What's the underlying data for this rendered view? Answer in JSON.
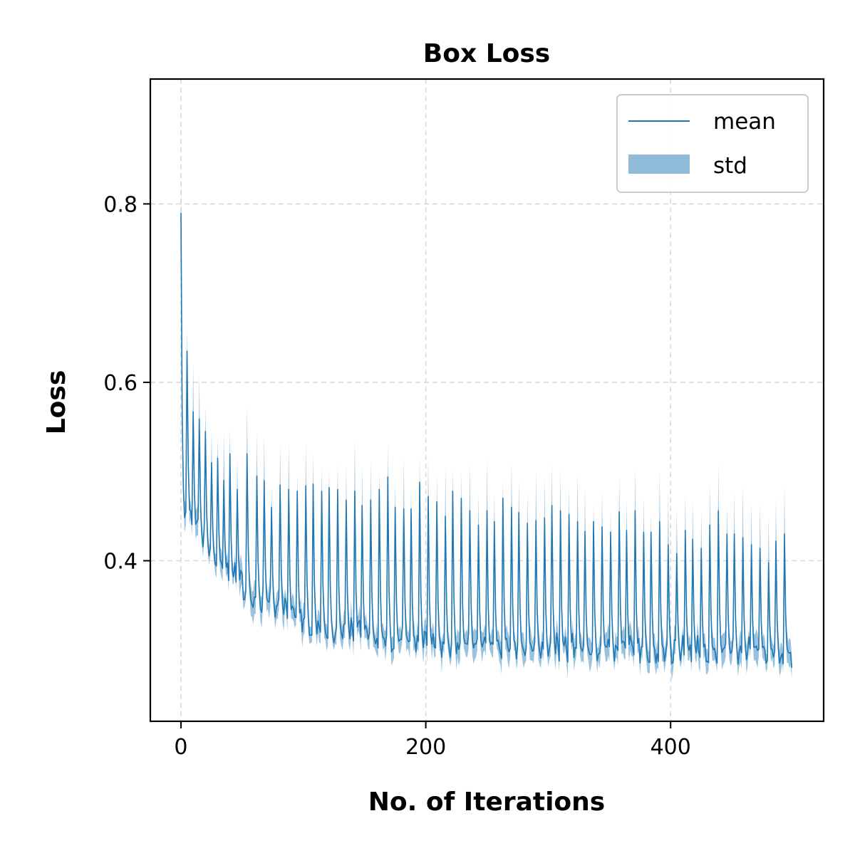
{
  "chart_data": {
    "type": "line",
    "title": "Box Loss",
    "xlabel": "No. of Iterations",
    "ylabel": "Loss",
    "xlim": [
      -25,
      525
    ],
    "ylim": [
      0.22,
      0.94
    ],
    "xticks": [
      0,
      200,
      400
    ],
    "yticks": [
      0.4,
      0.6,
      0.8
    ],
    "xtick_labels": [
      "0",
      "200",
      "400"
    ],
    "ytick_labels": [
      "0.4",
      "0.6",
      "0.8"
    ],
    "grid": true,
    "legend": {
      "placement": "top-right",
      "entries": [
        {
          "label": "mean",
          "kind": "line"
        },
        {
          "label": "std",
          "kind": "band"
        }
      ]
    },
    "colors": {
      "line": "#1f77b4",
      "band": "#1f77b4",
      "grid": "#d9d9d9"
    },
    "series": [
      {
        "label": "mean",
        "x_start": 0,
        "x_end": 499,
        "cycle_length": 6,
        "peak_x": [
          0,
          5,
          10,
          15,
          20,
          25,
          30,
          35,
          40,
          46,
          54,
          62,
          68,
          74,
          81,
          88,
          95,
          102,
          108,
          115,
          121,
          128,
          135,
          142,
          148,
          155,
          162,
          169,
          175,
          182,
          188,
          195,
          202,
          209,
          216,
          222,
          229,
          236,
          243,
          250,
          256,
          263,
          270,
          276,
          283,
          290,
          297,
          303,
          310,
          317,
          324,
          330,
          337,
          344,
          351,
          358,
          364,
          371,
          378,
          384,
          391,
          398,
          405,
          412,
          418,
          425,
          432,
          439,
          446,
          452,
          459,
          466,
          473,
          480,
          486,
          493
        ],
        "peak_y": [
          0.79,
          0.635,
          0.567,
          0.559,
          0.545,
          0.51,
          0.515,
          0.49,
          0.52,
          0.48,
          0.52,
          0.495,
          0.49,
          0.46,
          0.485,
          0.48,
          0.478,
          0.484,
          0.486,
          0.478,
          0.482,
          0.48,
          0.468,
          0.478,
          0.462,
          0.468,
          0.48,
          0.494,
          0.46,
          0.458,
          0.458,
          0.488,
          0.472,
          0.466,
          0.45,
          0.478,
          0.47,
          0.456,
          0.44,
          0.456,
          0.444,
          0.47,
          0.46,
          0.454,
          0.442,
          0.445,
          0.448,
          0.462,
          0.456,
          0.452,
          0.444,
          0.433,
          0.444,
          0.438,
          0.432,
          0.455,
          0.434,
          0.456,
          0.432,
          0.432,
          0.444,
          0.418,
          0.408,
          0.434,
          0.424,
          0.414,
          0.44,
          0.456,
          0.43,
          0.43,
          0.426,
          0.418,
          0.414,
          0.398,
          0.422,
          0.43
        ],
        "trough_start": 0.44,
        "trough_end": 0.29,
        "end_value": 0.28,
        "std_end": 0.012
      }
    ]
  }
}
